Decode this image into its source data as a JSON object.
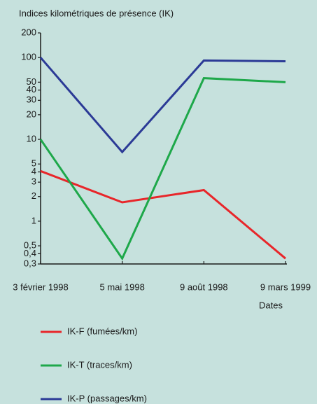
{
  "chart_data": {
    "type": "line",
    "y_label": "Indices kilométriques de présence (IK)",
    "x_label": "Dates",
    "categories": [
      "3 février 1998",
      "5 mai 1998",
      "9 août 1998",
      "9 mars 1999"
    ],
    "yscale": "log",
    "ylim": [
      0.3,
      200
    ],
    "yticks": [
      200,
      100,
      50,
      40,
      30,
      20,
      10,
      5,
      4,
      3,
      2,
      1,
      {
        "value": 0.5,
        "label": "0,5"
      },
      {
        "value": 0.4,
        "label": "0,4"
      },
      {
        "value": 0.3,
        "label": "0,3"
      }
    ],
    "series": [
      {
        "name": "IK-F (fumées/km)",
        "color": "#e8262a",
        "values": [
          4.1,
          1.7,
          2.4,
          0.35
        ]
      },
      {
        "name": "IK-T (traces/km)",
        "color": "#1ea84a",
        "values": [
          10,
          0.35,
          56,
          50
        ]
      },
      {
        "name": "IK-P (passages/km)",
        "color": "#2b3a96",
        "values": [
          100,
          7,
          92,
          90
        ]
      }
    ]
  }
}
